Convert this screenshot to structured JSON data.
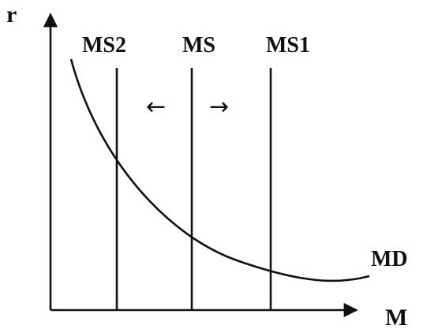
{
  "diagram": {
    "y_axis_label": "r",
    "x_axis_label": "M",
    "supply_curves": [
      {
        "label": "MS2"
      },
      {
        "label": "MS"
      },
      {
        "label": "MS1"
      }
    ],
    "demand_curve_label": "MD",
    "shift_left_arrow": "←",
    "shift_right_arrow": "→",
    "line_color": "#111111",
    "background_color": "#ffffff"
  }
}
